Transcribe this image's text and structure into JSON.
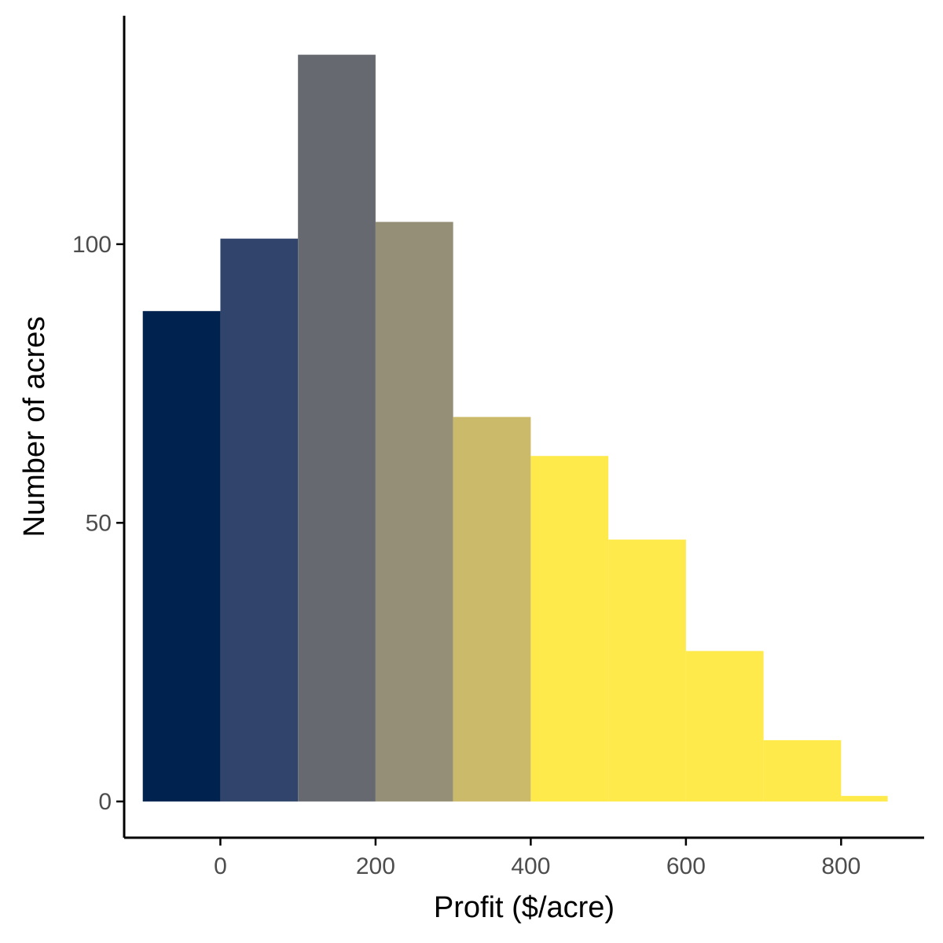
{
  "chart_data": {
    "type": "bar",
    "title": "",
    "xlabel": "Profit ($/acre)",
    "ylabel": "Number of acres",
    "bins": [
      {
        "x0": -100,
        "x1": 0,
        "value": 88,
        "color": "#00224e"
      },
      {
        "x0": 0,
        "x1": 100,
        "value": 101,
        "color": "#31446b"
      },
      {
        "x0": 100,
        "x1": 200,
        "value": 134,
        "color": "#666970"
      },
      {
        "x0": 200,
        "x1": 300,
        "value": 104,
        "color": "#958f78"
      },
      {
        "x0": 300,
        "x1": 400,
        "value": 69,
        "color": "#cbba69"
      },
      {
        "x0": 400,
        "x1": 500,
        "value": 62,
        "color": "#feea4a"
      },
      {
        "x0": 500,
        "x1": 600,
        "value": 47,
        "color": "#feea4a"
      },
      {
        "x0": 600,
        "x1": 700,
        "value": 27,
        "color": "#feea4a"
      },
      {
        "x0": 700,
        "x1": 800,
        "value": 11,
        "color": "#feea4a"
      },
      {
        "x0": 800,
        "x1": 860,
        "value": 1,
        "color": "#feea4a"
      }
    ],
    "x_ticks": [
      0,
      200,
      400,
      600,
      800
    ],
    "y_ticks": [
      0,
      50,
      100
    ],
    "xlim": [
      -124,
      907
    ],
    "ylim": [
      -6.5,
      141
    ],
    "grid": false,
    "legend": "none"
  }
}
